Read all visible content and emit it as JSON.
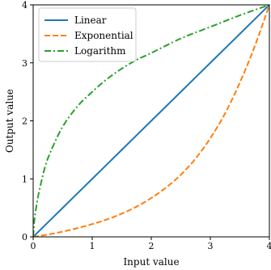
{
  "chart_data": {
    "type": "line",
    "xlabel": "Input value",
    "ylabel": "Output value",
    "xlim": [
      0,
      4
    ],
    "ylim": [
      0,
      4
    ],
    "x_ticks": [
      "0",
      "1",
      "2",
      "3",
      "4"
    ],
    "y_ticks": [
      "0",
      "1",
      "2",
      "3",
      "4"
    ],
    "grid": false,
    "legend_position": "top-left",
    "series": [
      {
        "name": "Linear",
        "color": "#1f77b4",
        "dash": "solid",
        "x": [
          0,
          0.5,
          1,
          1.5,
          2,
          2.5,
          3,
          3.5,
          4
        ],
        "y": [
          0,
          0.5,
          1,
          1.5,
          2,
          2.5,
          3,
          3.5,
          4
        ]
      },
      {
        "name": "Exponential",
        "color": "#ff7f0e",
        "dash": "dashed",
        "x": [
          0,
          0.25,
          0.5,
          0.75,
          1,
          1.25,
          1.5,
          1.75,
          2,
          2.25,
          2.5,
          2.75,
          3,
          3.25,
          3.5,
          3.75,
          4
        ],
        "y": [
          0,
          0.04,
          0.09,
          0.15,
          0.22,
          0.3,
          0.4,
          0.52,
          0.67,
          0.85,
          1.07,
          1.35,
          1.7,
          2.13,
          2.66,
          3.28,
          4.0
        ]
      },
      {
        "name": "Logarithm",
        "color": "#2ca02c",
        "dash": "dashdot",
        "x": [
          0,
          0.02,
          0.05,
          0.1,
          0.2,
          0.3,
          0.5,
          0.75,
          1,
          1.25,
          1.5,
          1.75,
          2,
          2.5,
          3,
          3.5,
          4
        ],
        "y": [
          0,
          0.28,
          0.5,
          0.78,
          1.2,
          1.48,
          1.9,
          2.25,
          2.5,
          2.72,
          2.9,
          3.05,
          3.17,
          3.42,
          3.62,
          3.82,
          4.0
        ]
      }
    ]
  }
}
